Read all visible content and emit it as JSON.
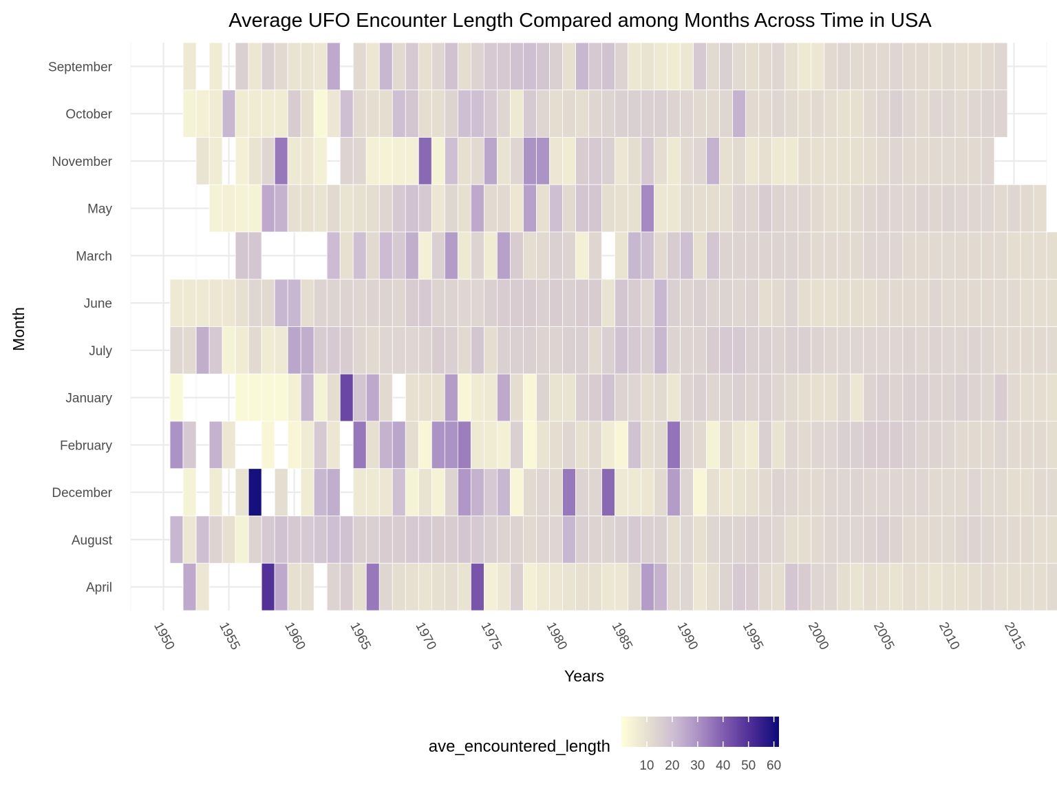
{
  "chart_data": {
    "type": "heatmap",
    "title": "Average UFO Encounter Length Compared among Months Across Time in USA",
    "xlabel": "Years",
    "ylabel": "Month",
    "x_ticks": [
      1950,
      1955,
      1960,
      1965,
      1970,
      1975,
      1980,
      1985,
      1990,
      1995,
      2000,
      2005,
      2010,
      2015
    ],
    "xlim": [
      1947.5,
      2017.5
    ],
    "months": [
      "September",
      "October",
      "November",
      "May",
      "March",
      "June",
      "July",
      "January",
      "February",
      "December",
      "August",
      "April"
    ],
    "legend": {
      "title": "ave_encountered_length",
      "ticks": [
        10,
        20,
        30,
        40,
        50,
        60
      ],
      "range": [
        0,
        62
      ],
      "placement": "bottom",
      "colors": [
        "#ffffd9",
        "#e6dfd0",
        "#cdbdd2",
        "#a98ec4",
        "#7b57ad",
        "#4a2a95",
        "#0a0a78"
      ]
    },
    "grid": true,
    "rows": {
      "September": {
        "start": 1952,
        "values": [
          7,
          null,
          6,
          null,
          15,
          8,
          15,
          12,
          9,
          9,
          8,
          25,
          null,
          12,
          8,
          22,
          12,
          17,
          10,
          13,
          19,
          11,
          14,
          17,
          17,
          19,
          20,
          18,
          15,
          10,
          22,
          17,
          19,
          14,
          8,
          9,
          7,
          6,
          8,
          17,
          12,
          15,
          12,
          11,
          12,
          13,
          10,
          7,
          8,
          12,
          13,
          12,
          12,
          12,
          13,
          12,
          12,
          11,
          12,
          11,
          11,
          12,
          13
        ]
      },
      "October": {
        "start": 1952,
        "values": [
          4,
          5,
          6,
          22,
          6,
          6,
          6,
          6,
          16,
          10,
          2,
          8,
          20,
          12,
          11,
          11,
          20,
          18,
          11,
          11,
          14,
          20,
          20,
          17,
          13,
          7,
          17,
          13,
          11,
          12,
          11,
          13,
          14,
          15,
          15,
          15,
          15,
          14,
          13,
          12,
          12,
          13,
          23,
          12,
          12,
          13,
          12,
          11,
          12,
          11,
          10,
          10,
          12,
          13,
          15,
          13,
          12,
          13,
          13,
          12,
          13,
          14,
          14
        ]
      },
      "November": {
        "start": 1953,
        "values": [
          9,
          6,
          null,
          5,
          9,
          13,
          35,
          7,
          8,
          5,
          null,
          14,
          13,
          5,
          4,
          5,
          5,
          38,
          4,
          20,
          10,
          12,
          26,
          9,
          13,
          30,
          30,
          8,
          6,
          16,
          17,
          15,
          8,
          11,
          17,
          11,
          7,
          12,
          13,
          23,
          10,
          12,
          8,
          10,
          7,
          7,
          11,
          10,
          10,
          10,
          10,
          11,
          12,
          13,
          12,
          12,
          12,
          12,
          12,
          12,
          13
        ]
      },
      "May": {
        "start": 1954,
        "values": [
          4,
          5,
          4,
          4,
          25,
          23,
          10,
          10,
          9,
          12,
          9,
          10,
          11,
          13,
          17,
          19,
          17,
          8,
          13,
          10,
          25,
          12,
          12,
          8,
          27,
          10,
          20,
          12,
          18,
          18,
          11,
          10,
          10,
          32,
          8,
          8,
          12,
          11,
          11,
          11,
          14,
          13,
          16,
          14,
          13,
          13,
          12,
          11,
          11,
          12,
          13,
          14,
          13,
          13,
          14,
          13,
          14,
          13,
          13,
          13,
          12,
          13,
          12,
          11
        ]
      },
      "March": {
        "start": 1956,
        "values": [
          18,
          18,
          null,
          null,
          null,
          null,
          null,
          21,
          10,
          20,
          12,
          21,
          17,
          24,
          5,
          15,
          28,
          7,
          14,
          6,
          27,
          16,
          11,
          12,
          15,
          14,
          5,
          13,
          null,
          9,
          22,
          20,
          12,
          16,
          20,
          10,
          18,
          14,
          14,
          14,
          14,
          14,
          14,
          13,
          12,
          12,
          12,
          12,
          13,
          13,
          13,
          12,
          12,
          12,
          12,
          12,
          12,
          12,
          12,
          11,
          11,
          11,
          11,
          10,
          10,
          10
        ]
      },
      "June": {
        "start": 1951,
        "values": [
          7,
          7,
          7,
          8,
          8,
          10,
          13,
          12,
          22,
          22,
          11,
          14,
          14,
          14,
          13,
          14,
          14,
          13,
          16,
          17,
          14,
          14,
          13,
          13,
          15,
          16,
          16,
          16,
          15,
          16,
          15,
          16,
          16,
          9,
          18,
          16,
          13,
          22,
          15,
          14,
          15,
          14,
          14,
          13,
          14,
          11,
          12,
          14,
          11,
          10,
          10,
          11,
          11,
          11,
          12,
          12,
          12,
          12,
          13,
          12,
          12,
          12,
          12,
          12,
          12,
          11,
          11,
          11,
          11
        ]
      },
      "July": {
        "start": 1951,
        "values": [
          13,
          12,
          24,
          17,
          4,
          6,
          12,
          6,
          7,
          26,
          24,
          16,
          17,
          16,
          13,
          12,
          13,
          13,
          13,
          14,
          16,
          15,
          12,
          18,
          11,
          15,
          15,
          15,
          14,
          14,
          15,
          15,
          12,
          15,
          19,
          17,
          15,
          22,
          14,
          14,
          14,
          16,
          17,
          17,
          15,
          15,
          14,
          15,
          15,
          14,
          13,
          13,
          13,
          13,
          13,
          13,
          14,
          13,
          14,
          13,
          13,
          14,
          13,
          12,
          12,
          12,
          12,
          12
        ]
      },
      "January": {
        "start": 1951,
        "values": [
          2,
          null,
          null,
          null,
          null,
          2,
          2,
          2,
          2,
          5,
          22,
          4,
          11,
          45,
          18,
          25,
          12,
          null,
          10,
          10,
          10,
          28,
          3,
          6,
          7,
          25,
          11,
          3,
          14,
          9,
          9,
          15,
          16,
          19,
          14,
          13,
          11,
          12,
          8,
          14,
          15,
          13,
          14,
          15,
          14,
          15,
          13,
          12,
          11,
          10,
          10,
          13,
          8,
          14,
          15,
          14,
          15,
          15,
          14,
          14,
          15,
          14,
          13,
          16,
          12,
          11,
          11,
          10,
          10,
          10
        ]
      },
      "February": {
        "start": 1951,
        "values": [
          30,
          17,
          null,
          23,
          8,
          null,
          null,
          3,
          null,
          3,
          6,
          17,
          8,
          null,
          35,
          10,
          23,
          26,
          11,
          3,
          30,
          30,
          34,
          7,
          6,
          5,
          15,
          2,
          9,
          11,
          13,
          10,
          12,
          6,
          3,
          19,
          11,
          12,
          36,
          14,
          12,
          4,
          12,
          8,
          6,
          15,
          9,
          13,
          12,
          13,
          13,
          15,
          15,
          16,
          16,
          16,
          15,
          14,
          14,
          13,
          12,
          12,
          12,
          13,
          12,
          12,
          12,
          11,
          11,
          11
        ]
      },
      "December": {
        "start": 1951,
        "values": [
          null,
          4,
          null,
          6,
          null,
          9,
          60,
          null,
          11,
          null,
          6,
          22,
          24,
          null,
          7,
          7,
          8,
          20,
          4,
          9,
          4,
          14,
          29,
          23,
          17,
          22,
          3,
          12,
          13,
          12,
          35,
          14,
          13,
          38,
          7,
          7,
          8,
          12,
          28,
          13,
          3,
          10,
          8,
          9,
          10,
          12,
          14,
          13,
          12,
          12,
          13,
          13,
          14,
          13,
          13,
          13,
          13,
          13,
          12,
          12,
          12,
          13,
          12,
          12,
          11,
          11,
          12,
          12
        ]
      },
      "August": {
        "start": 1951,
        "values": [
          22,
          8,
          20,
          14,
          10,
          4,
          14,
          17,
          19,
          17,
          17,
          18,
          20,
          19,
          15,
          15,
          16,
          16,
          17,
          17,
          16,
          16,
          18,
          17,
          15,
          14,
          14,
          12,
          13,
          13,
          22,
          15,
          14,
          14,
          15,
          17,
          15,
          15,
          11,
          13,
          10,
          13,
          14,
          14,
          15,
          14,
          13,
          11,
          11,
          12,
          13,
          13,
          13,
          14,
          15,
          14,
          12,
          12,
          12,
          12,
          13,
          14,
          13,
          12,
          12,
          12,
          11,
          11
        ]
      },
      "April": {
        "start": 1952,
        "values": [
          25,
          8,
          null,
          null,
          null,
          null,
          50,
          25,
          10,
          11,
          null,
          14,
          16,
          10,
          35,
          13,
          11,
          10,
          9,
          10,
          11,
          9,
          42,
          5,
          8,
          15,
          5,
          7,
          8,
          9,
          10,
          10,
          8,
          8,
          12,
          28,
          23,
          12,
          13,
          8,
          11,
          14,
          17,
          16,
          12,
          11,
          18,
          16,
          13,
          13,
          11,
          9,
          11,
          10,
          9,
          11,
          10,
          9,
          10,
          10,
          11,
          12,
          11,
          11,
          11,
          11,
          12,
          12,
          12,
          13
        ]
      }
    }
  }
}
